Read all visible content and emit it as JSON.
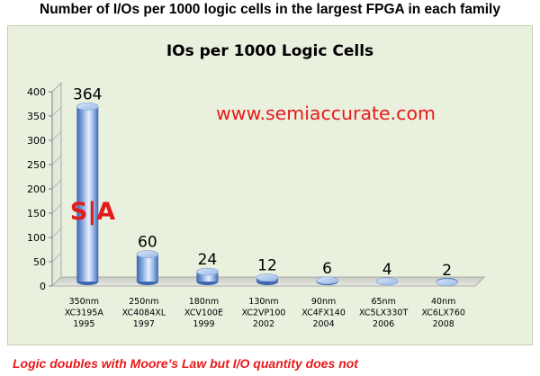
{
  "heading": "Number of I/Os per 1000 logic cells in the largest FPGA in each family",
  "footer": "Logic doubles with Moore’s Law but I/O quantity does not",
  "watermark": "www.semiaccurate.com",
  "logo": "S|A",
  "colors": {
    "accent_red": "#e8191b",
    "bar_blue": "#5b86c8",
    "chart_bg": "#e9f0de"
  },
  "chart_data": {
    "type": "bar",
    "title": "IOs per 1000 Logic Cells",
    "xlabel": "",
    "ylabel": "",
    "ylim": [
      0,
      400
    ],
    "yticks": [
      0,
      50,
      100,
      150,
      200,
      250,
      300,
      350,
      400
    ],
    "categories": [
      [
        "350nm",
        "XC3195A",
        "1995"
      ],
      [
        "250nm",
        "XC4084XL",
        "1997"
      ],
      [
        "180nm",
        "XCV100E",
        "1999"
      ],
      [
        "130nm",
        "XC2VP100",
        "2002"
      ],
      [
        "90nm",
        "XC4FX140",
        "2004"
      ],
      [
        "65nm",
        "XC5LX330T",
        "2006"
      ],
      [
        "40nm",
        "XC6LX760",
        "2008"
      ]
    ],
    "values": [
      364,
      60,
      24,
      12,
      6,
      4,
      2
    ],
    "data_labels": [
      "364",
      "60",
      "24",
      "12",
      "6",
      "4",
      "2"
    ],
    "grid": false,
    "legend": "none",
    "style": "3d-cylinder"
  }
}
